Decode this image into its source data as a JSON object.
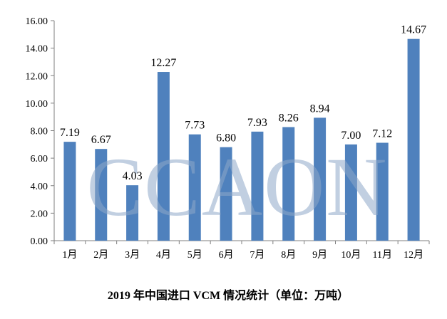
{
  "chart_data": {
    "type": "bar",
    "title": "2019 年中国进口 VCM 情况统计（单位：万吨）",
    "xlabel": "",
    "ylabel": "",
    "categories": [
      "1月",
      "2月",
      "3月",
      "4月",
      "5月",
      "6月",
      "7月",
      "8月",
      "9月",
      "10月",
      "11月",
      "12月"
    ],
    "values": [
      7.19,
      6.67,
      4.03,
      12.27,
      7.73,
      6.8,
      7.93,
      8.26,
      8.94,
      7.0,
      7.12,
      14.67
    ],
    "data_labels": [
      "7.19",
      "6.67",
      "4.03",
      "12.27",
      "7.73",
      "6.80",
      "7.93",
      "8.26",
      "8.94",
      "7.00",
      "7.12",
      "14.67"
    ],
    "ylim": [
      0,
      16
    ],
    "yticks": [
      "0.00",
      "2.00",
      "4.00",
      "6.00",
      "8.00",
      "10.00",
      "12.00",
      "14.00",
      "16.00"
    ],
    "grid": false,
    "legend": "none",
    "bar_color": "#4f81bd",
    "watermark": "CCAON"
  }
}
